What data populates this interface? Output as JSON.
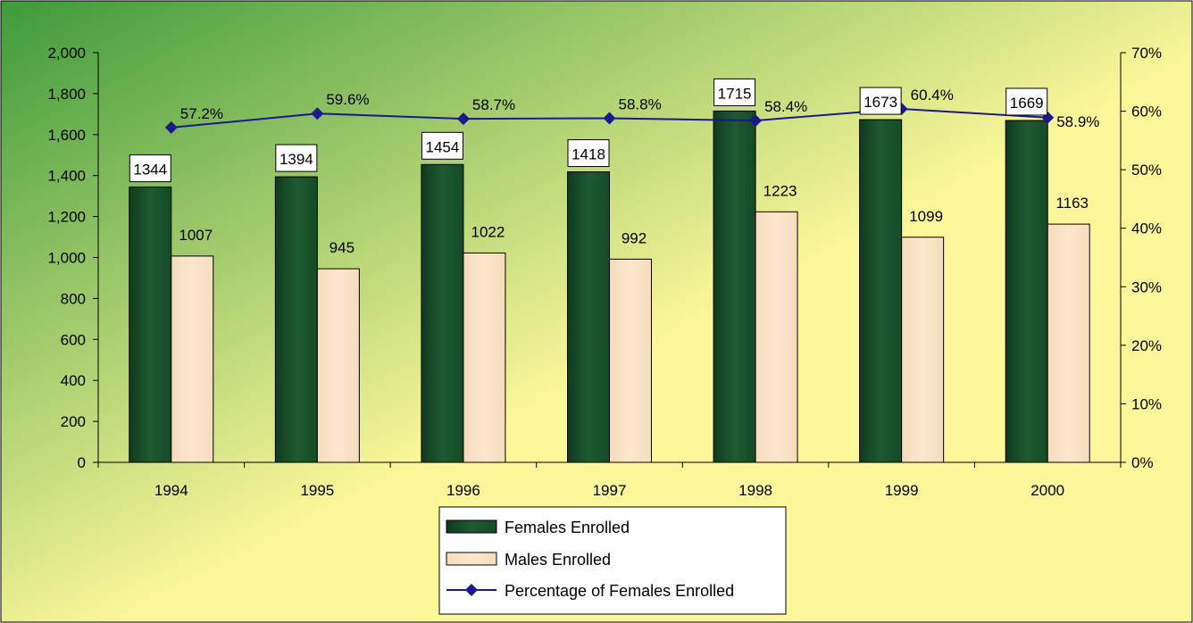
{
  "colors": {
    "female_bar": "#1e5a32",
    "male_bar": "#fbe6cc",
    "line": "#1a1a8c",
    "bg_green": "#3e9a3a",
    "bg_yellow": "#fbf79a"
  },
  "chart_data": {
    "type": "bar",
    "title": "",
    "xlabel": "",
    "ylabel": "",
    "categories": [
      "1994",
      "1995",
      "1996",
      "1997",
      "1998",
      "1999",
      "2000"
    ],
    "ylim": [
      0,
      2000
    ],
    "y2lim": [
      0,
      70
    ],
    "y_ticks": [
      "0",
      "200",
      "400",
      "600",
      "800",
      "1,000",
      "1,200",
      "1,400",
      "1,600",
      "1,800",
      "2,000"
    ],
    "y2_ticks": [
      "0%",
      "10%",
      "20%",
      "30%",
      "40%",
      "50%",
      "60%",
      "70%"
    ],
    "grid": false,
    "legend_position": "bottom",
    "series": [
      {
        "name": "Females Enrolled",
        "kind": "bar",
        "axis": "left",
        "values": [
          1344,
          1394,
          1454,
          1418,
          1715,
          1673,
          1669
        ],
        "labels": [
          "1344",
          "1394",
          "1454",
          "1418",
          "1715",
          "1673",
          "1669"
        ]
      },
      {
        "name": "Males Enrolled",
        "kind": "bar",
        "axis": "left",
        "values": [
          1007,
          945,
          1022,
          992,
          1223,
          1099,
          1163
        ],
        "labels": [
          "1007",
          "945",
          "1022",
          "992",
          "1223",
          "1099",
          "1163"
        ]
      },
      {
        "name": "Percentage of Females Enrolled",
        "kind": "line",
        "axis": "right",
        "values": [
          57.2,
          59.6,
          58.7,
          58.8,
          58.4,
          60.4,
          58.9
        ],
        "labels": [
          "57.2%",
          "59.6%",
          "58.7%",
          "58.8%",
          "58.4%",
          "60.4%",
          "58.9%"
        ]
      }
    ]
  }
}
